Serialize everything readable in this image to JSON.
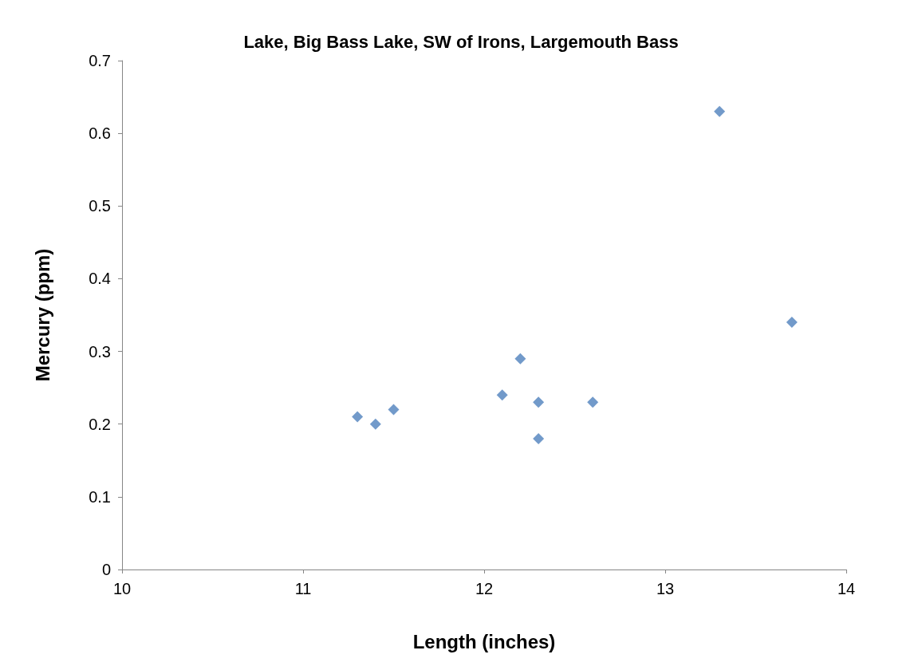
{
  "chart_data": {
    "type": "scatter",
    "title": "Lake, Big Bass Lake, SW of Irons, Largemouth Bass",
    "xlabel": "Length (inches)",
    "ylabel": "Mercury (ppm)",
    "x": [
      11.3,
      11.4,
      11.5,
      12.1,
      12.2,
      12.3,
      12.3,
      12.6,
      13.3,
      13.7
    ],
    "values": [
      0.21,
      0.2,
      0.22,
      0.24,
      0.29,
      0.23,
      0.18,
      0.23,
      0.63,
      0.34
    ],
    "color": "#4f81bd",
    "marker": "diamond",
    "grid": false,
    "xlim": [
      10,
      14
    ],
    "xticks": [
      10,
      11,
      12,
      13,
      14
    ],
    "ylim": [
      0,
      0.7
    ],
    "yticks": [
      0,
      0.1,
      0.2,
      0.3,
      0.4,
      0.5,
      0.6,
      0.7
    ]
  }
}
